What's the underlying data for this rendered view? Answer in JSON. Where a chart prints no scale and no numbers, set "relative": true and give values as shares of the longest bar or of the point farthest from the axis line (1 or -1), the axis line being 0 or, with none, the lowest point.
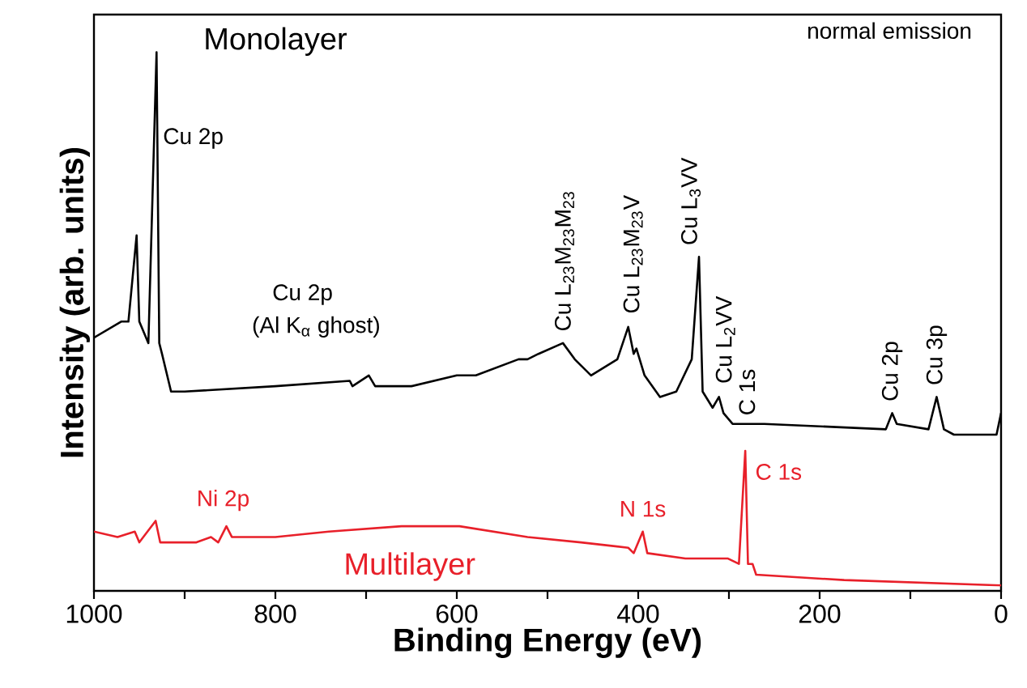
{
  "chart_data": {
    "type": "line",
    "relative": true,
    "xlabel": "Binding Energy (eV)",
    "ylabel": "Intensity (arb. units)",
    "xlim": [
      1000,
      0
    ],
    "xticks": [
      1000,
      {
        "value": 900,
        "label": null
      },
      800,
      {
        "value": 700,
        "label": null
      },
      600,
      {
        "value": 500,
        "label": null
      },
      400,
      {
        "value": 300,
        "label": null
      },
      200,
      {
        "value": 100,
        "label": null
      },
      0
    ],
    "legend": false,
    "marker": "none",
    "line_style": "solid",
    "grid": false,
    "series": [
      {
        "name": "Monolayer",
        "color": "#000000",
        "x": [
          1000,
          970,
          962,
          953,
          950,
          945,
          940,
          931,
          928,
          925,
          915,
          900,
          800,
          718,
          715,
          697,
          690,
          650,
          600,
          579,
          532,
          522,
          510,
          483,
          470,
          452,
          423,
          411,
          405,
          402,
          393,
          376,
          358,
          341,
          333,
          329,
          318,
          311,
          306,
          296,
          280,
          261,
          127,
          120,
          115,
          80,
          71,
          63,
          52,
          5,
          0
        ],
        "values": [
          0.47,
          0.5,
          0.5,
          0.66,
          0.5,
          0.48,
          0.46,
          1.0,
          0.46,
          0.44,
          0.37,
          0.37,
          0.38,
          0.39,
          0.38,
          0.4,
          0.38,
          0.38,
          0.4,
          0.4,
          0.43,
          0.43,
          0.44,
          0.46,
          0.43,
          0.4,
          0.43,
          0.49,
          0.44,
          0.45,
          0.4,
          0.36,
          0.37,
          0.43,
          0.62,
          0.37,
          0.34,
          0.36,
          0.33,
          0.31,
          0.31,
          0.31,
          0.3,
          0.33,
          0.31,
          0.3,
          0.36,
          0.3,
          0.29,
          0.29,
          0.33
        ]
      },
      {
        "name": "Multilayer",
        "color": "#e8202a",
        "x": [
          1000,
          974,
          955,
          950,
          932,
          927,
          887,
          871,
          863,
          854,
          848,
          800,
          741,
          661,
          597,
          522,
          463,
          411,
          405,
          395,
          390,
          348,
          301,
          289,
          282,
          279,
          274,
          270,
          173,
          0
        ],
        "values": [
          0.11,
          0.1,
          0.11,
          0.09,
          0.13,
          0.09,
          0.09,
          0.1,
          0.09,
          0.12,
          0.1,
          0.1,
          0.11,
          0.12,
          0.12,
          0.1,
          0.09,
          0.08,
          0.07,
          0.11,
          0.07,
          0.06,
          0.06,
          0.05,
          0.26,
          0.05,
          0.05,
          0.03,
          0.02,
          0.01
        ]
      }
    ],
    "annotations": [
      "normal emission",
      "Cu 2p",
      "Cu 2p",
      "(Al K$_{α}$ ghost)",
      {
        "text": "Cu L$_{23}$M$_{23}$M$_{23}$",
        "x": 483,
        "y": 0.46
      },
      {
        "text": "Cu L$_{23}$M$_{23}$V",
        "x": 411,
        "y": 0.49
      },
      {
        "text": "Cu L$_{3}$VV",
        "x": 333,
        "y": 0.62
      },
      {
        "text": "Cu L$_{2}$VV",
        "x": 311,
        "y": 0.36
      },
      {
        "text": "C 1s",
        "x": 280,
        "y": 0.31
      },
      {
        "text": "Cu 2p",
        "x": 120,
        "y": 0.33
      },
      {
        "text": "Cu 3p",
        "x": 71,
        "y": 0.36
      },
      {
        "text": "Ni 2p",
        "x": 854,
        "y": 0.12
      },
      {
        "text": "N 1s",
        "x": 395,
        "y": 0.11
      },
      {
        "text": "C 1s",
        "x": 282,
        "y": 0.26
      }
    ]
  }
}
